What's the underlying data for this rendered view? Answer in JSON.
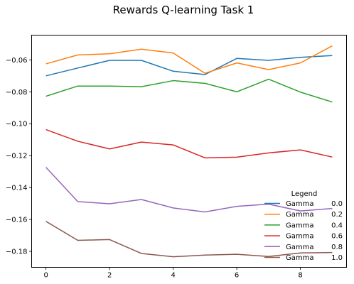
{
  "chart_data": {
    "type": "line",
    "title": "Rewards Q-learning Task 1",
    "xlabel": "",
    "ylabel": "",
    "x": [
      0,
      1,
      2,
      3,
      4,
      5,
      6,
      7,
      8,
      9
    ],
    "xlim": [
      -0.45,
      9.45
    ],
    "ylim": [
      -0.19,
      -0.0445
    ],
    "xticks": [
      0,
      2,
      4,
      6,
      8
    ],
    "xtick_labels": [
      "0",
      "2",
      "4",
      "6",
      "8"
    ],
    "yticks": [
      -0.18,
      -0.16,
      -0.14,
      -0.12,
      -0.1,
      -0.08,
      -0.06
    ],
    "ytick_labels": [
      "−0.18",
      "−0.16",
      "−0.14",
      "−0.12",
      "−0.10",
      "−0.08",
      "−0.06"
    ],
    "grid": false,
    "legend": {
      "title": "Legend",
      "placement": "bottom-right",
      "entries": [
        {
          "label": "Gamma",
          "value": "0.0"
        },
        {
          "label": "Gamma",
          "value": "0.2"
        },
        {
          "label": "Gamma",
          "value": "0.4"
        },
        {
          "label": "Gamma",
          "value": "0.6"
        },
        {
          "label": "Gamma",
          "value": "0.8"
        },
        {
          "label": "Gamma",
          "value": "1.0"
        }
      ]
    },
    "series": [
      {
        "color": "#1f77b4",
        "values": [
          -0.07,
          -0.0651,
          -0.0603,
          -0.0603,
          -0.0671,
          -0.0692,
          -0.0591,
          -0.0603,
          -0.0584,
          -0.0573
        ]
      },
      {
        "color": "#ff7f0e",
        "values": [
          -0.0625,
          -0.0569,
          -0.0562,
          -0.0533,
          -0.0557,
          -0.0684,
          -0.0619,
          -0.0661,
          -0.0619,
          -0.0512
        ]
      },
      {
        "color": "#2ca02c",
        "values": [
          -0.0828,
          -0.0764,
          -0.0764,
          -0.0768,
          -0.073,
          -0.0747,
          -0.08,
          -0.0721,
          -0.0802,
          -0.0864
        ]
      },
      {
        "color": "#d62728",
        "values": [
          -0.1037,
          -0.111,
          -0.1158,
          -0.1115,
          -0.1133,
          -0.1214,
          -0.121,
          -0.1183,
          -0.1164,
          -0.1209
        ]
      },
      {
        "color": "#9467bd",
        "values": [
          -0.1273,
          -0.1488,
          -0.1502,
          -0.1475,
          -0.1528,
          -0.1553,
          -0.1518,
          -0.1504,
          -0.1547,
          -0.1531
        ]
      },
      {
        "color": "#8c564b",
        "values": [
          -0.1612,
          -0.1731,
          -0.1726,
          -0.1813,
          -0.1834,
          -0.1823,
          -0.1818,
          -0.1832,
          -0.181,
          -0.1807
        ]
      }
    ]
  }
}
